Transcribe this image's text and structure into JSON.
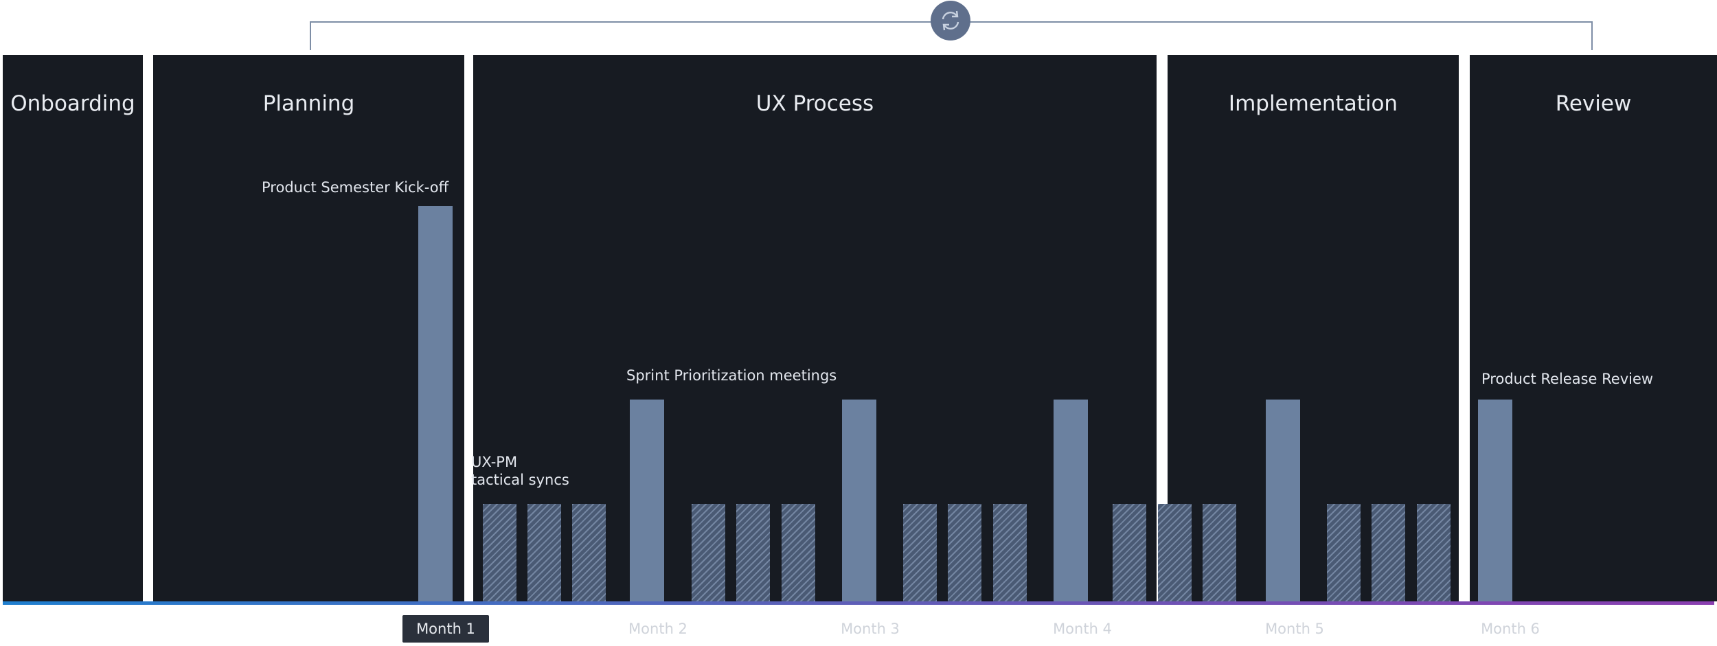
{
  "phases": [
    {
      "title": "Onboarding"
    },
    {
      "title": "Planning"
    },
    {
      "title": "UX Process"
    },
    {
      "title": "Implementation"
    },
    {
      "title": "Review"
    }
  ],
  "labels": {
    "kickoff": "Product Semester Kick-off",
    "sprint": "Sprint Prioritization meetings",
    "uxpm_line1": "UX-PM",
    "uxpm_line2": "tactical syncs",
    "release": "Product Release Review"
  },
  "months": [
    "Month 1",
    "Month 2",
    "Month 3",
    "Month 4",
    "Month 5",
    "Month 6"
  ],
  "active_month": "Month 1",
  "icons": {
    "cycle": "refresh-icon"
  },
  "colors": {
    "panel": "#171b22",
    "tall_bar": "#6b81a0",
    "hatch_bar": "#4a5a74",
    "bracket": "#7e8ea6",
    "timeline_start": "#1f7fcf",
    "timeline_end": "#8a3fb0"
  }
}
